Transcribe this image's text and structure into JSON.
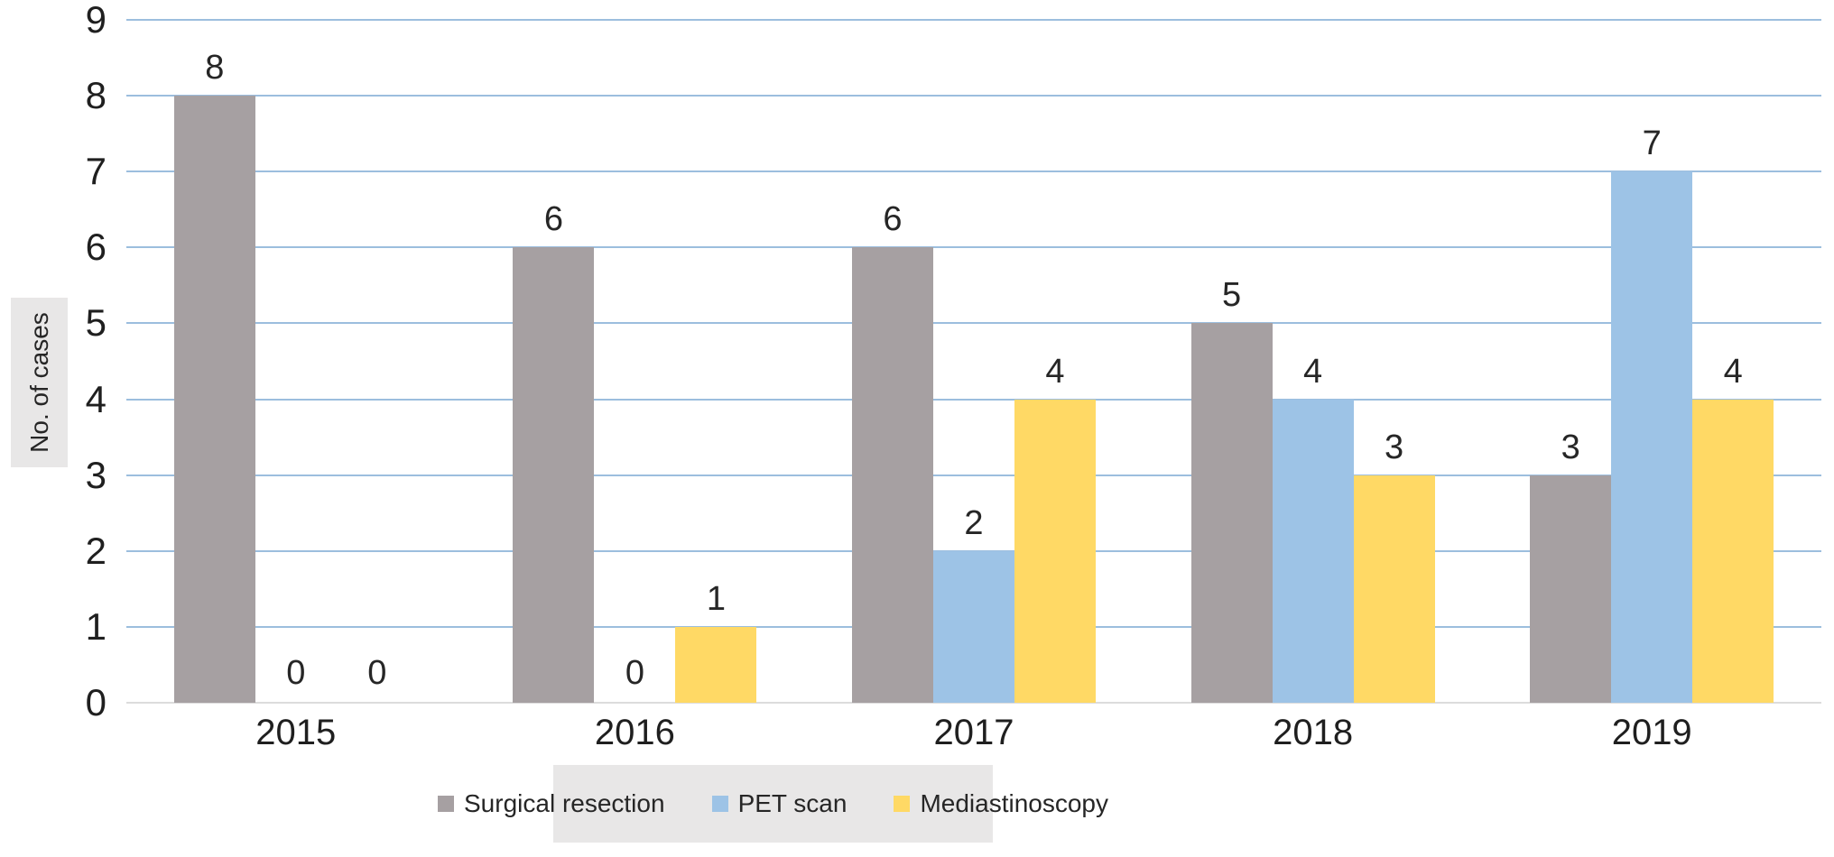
{
  "chart_data": {
    "type": "bar",
    "title": "",
    "xlabel": "",
    "ylabel": "No. of cases",
    "categories": [
      "2015",
      "2016",
      "2017",
      "2018",
      "2019"
    ],
    "series": [
      {
        "name": "Surgical resection",
        "color": "#a6a0a2",
        "values": [
          8,
          6,
          6,
          5,
          3
        ]
      },
      {
        "name": "PET scan",
        "color": "#9dc3e6",
        "values": [
          0,
          0,
          2,
          4,
          7
        ]
      },
      {
        "name": "Mediastinoscopy",
        "color": "#ffd965",
        "values": [
          0,
          1,
          4,
          3,
          4
        ]
      }
    ],
    "ylim": [
      0,
      9
    ],
    "yticks": [
      0,
      1,
      2,
      3,
      4,
      5,
      6,
      7,
      8,
      9
    ],
    "grid": true,
    "gridline_color": "#9cbede",
    "baseline_color": "#dcdcdc",
    "data_labels": true,
    "legend_position": "bottom",
    "panel_bg_color": "#e8e7e7",
    "text_color": "#262626"
  }
}
